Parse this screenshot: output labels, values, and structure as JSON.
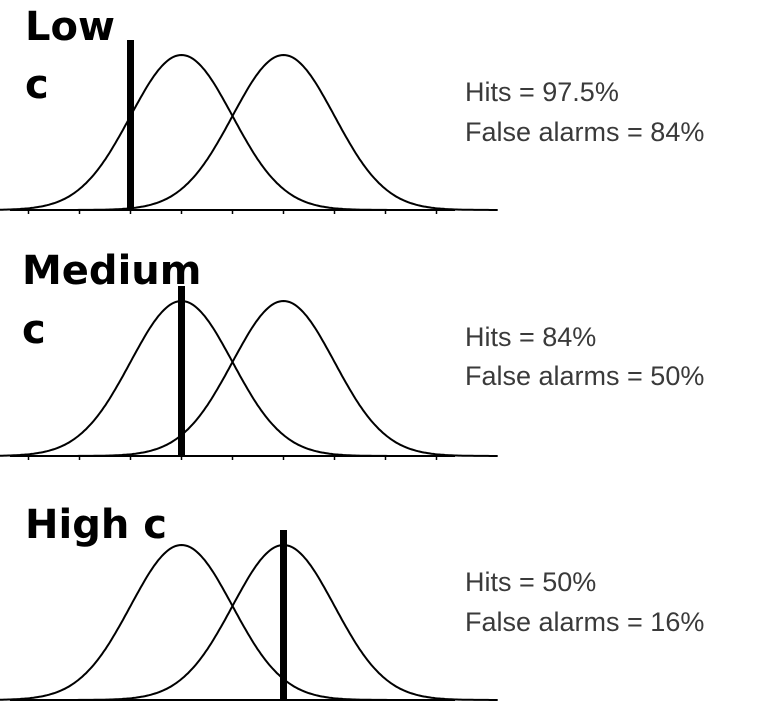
{
  "figure": {
    "panels": [
      {
        "id": "low",
        "label_lines": [
          "Low",
          "c"
        ],
        "hits_text": "Hits = 97.5%",
        "fa_text": "False alarms = 84%",
        "noise_mean": -1,
        "signal_mean": 1,
        "sd": 1,
        "criterion": -2
      },
      {
        "id": "medium",
        "label_lines": [
          "Medium",
          "c"
        ],
        "hits_text": "Hits = 84%",
        "fa_text": "False alarms =  50%",
        "noise_mean": -1,
        "signal_mean": 1,
        "sd": 1,
        "criterion": -1
      },
      {
        "id": "high",
        "label_lines": [
          "High c"
        ],
        "hits_text": "Hits = 50%",
        "fa_text": "False alarms =  16%",
        "noise_mean": -1,
        "signal_mean": 1,
        "sd": 1,
        "criterion": 1
      }
    ],
    "x_range": [
      -6,
      6
    ],
    "tick_step": 1
  }
}
